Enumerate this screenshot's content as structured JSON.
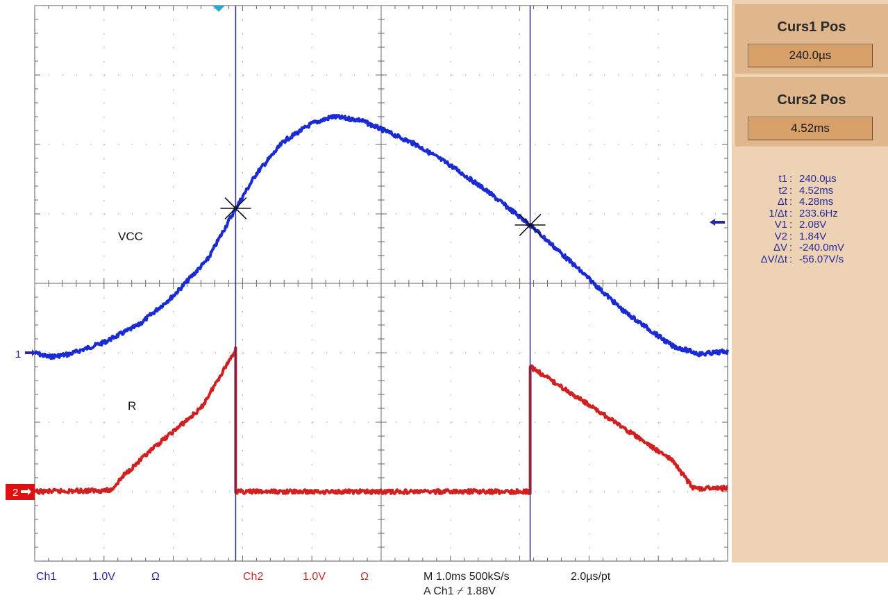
{
  "chart_data": {
    "type": "line",
    "grid": true,
    "x_divisions": 10,
    "y_divisions": 8,
    "series": [
      {
        "name": "VCC",
        "color": "#1a2ad4",
        "points": [
          [
            0,
            -1.0
          ],
          [
            0.2,
            -1.06
          ],
          [
            0.5,
            -1.02
          ],
          [
            1.0,
            -0.85
          ],
          [
            1.5,
            -0.6
          ],
          [
            2.0,
            -0.18
          ],
          [
            2.5,
            0.35
          ],
          [
            2.9,
            1.08
          ],
          [
            3.2,
            1.58
          ],
          [
            3.6,
            2.05
          ],
          [
            4.0,
            2.3
          ],
          [
            4.3,
            2.4
          ],
          [
            4.7,
            2.35
          ],
          [
            5.0,
            2.22
          ],
          [
            5.5,
            2.0
          ],
          [
            6.0,
            1.7
          ],
          [
            6.5,
            1.35
          ],
          [
            7.15,
            0.84
          ],
          [
            7.8,
            0.25
          ],
          [
            8.5,
            -0.4
          ],
          [
            9.2,
            -0.9
          ],
          [
            9.6,
            -1.02
          ],
          [
            10.0,
            -0.98
          ]
        ]
      },
      {
        "name": "R",
        "color": "#d02020",
        "points": [
          [
            0,
            -3.0
          ],
          [
            1.1,
            -2.98
          ],
          [
            1.3,
            -2.75
          ],
          [
            1.8,
            -2.3
          ],
          [
            2.4,
            -1.8
          ],
          [
            2.9,
            -0.95
          ],
          [
            2.9,
            -3.0
          ],
          [
            7.15,
            -3.0
          ],
          [
            7.15,
            -1.2
          ],
          [
            8.0,
            -1.75
          ],
          [
            9.2,
            -2.55
          ],
          [
            9.5,
            -2.95
          ],
          [
            10.0,
            -2.95
          ]
        ]
      }
    ],
    "cursors": [
      {
        "x": 2.9,
        "y": 1.08
      },
      {
        "x": 7.15,
        "y": 0.84
      }
    ],
    "labels": {
      "vcc": "VCC",
      "r": "R"
    },
    "markers": {
      "ch1": "1",
      "ch2": "2"
    }
  },
  "panel": {
    "curs1_title": "Curs1 Pos",
    "curs1_value": "240.0µs",
    "curs2_title": "Curs2 Pos",
    "curs2_value": "4.52ms",
    "readout": [
      {
        "label": "t1",
        "value": "240.0µs"
      },
      {
        "label": "t2",
        "value": "4.52ms"
      },
      {
        "label": "Δt",
        "value": "4.28ms"
      },
      {
        "label": "1/Δt",
        "value": "233.6Hz"
      },
      {
        "label": "V1",
        "value": "2.08V"
      },
      {
        "label": "V2",
        "value": "1.84V"
      },
      {
        "label": "ΔV",
        "value": "-240.0mV"
      },
      {
        "label": "ΔV/Δt",
        "value": "-56.07V/s"
      }
    ]
  },
  "footer": {
    "ch1": "Ch1",
    "ch1_scale": "1.0V",
    "ch1_coupling": "Ω",
    "ch2": "Ch2",
    "ch2_scale": "1.0V",
    "ch2_coupling": "Ω",
    "timebase": "M 1.0ms 500kS/s",
    "per_point": "2.0µs/pt",
    "trigger": "A  Ch1  ⌿  1.88V"
  },
  "colors": {
    "ch1": "#1a2ad4",
    "ch2": "#d02020",
    "text_blue": "#2a2aa0",
    "text_red": "#c03030"
  }
}
